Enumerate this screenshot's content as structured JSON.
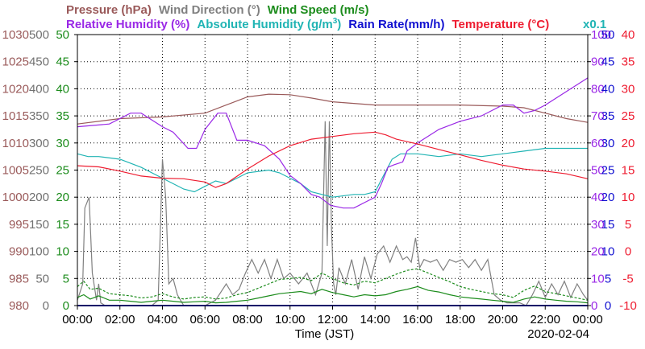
{
  "chart_data": {
    "type": "line",
    "date": "2020-02-04",
    "xlabel": "Time (JST)",
    "x_ticks": [
      "00:00",
      "02:00",
      "04:00",
      "06:00",
      "08:00",
      "10:00",
      "12:00",
      "14:00",
      "16:00",
      "18:00",
      "20:00",
      "22:00",
      "00:00"
    ],
    "x_range_hours": [
      0,
      24
    ],
    "grid": true,
    "legend": [
      {
        "key": "pressure",
        "label": "Pressure (hPa)",
        "color": "#9a5a5a",
        "row": 1
      },
      {
        "key": "wind_dir",
        "label": "Wind Direction (°)",
        "color": "#808080",
        "row": 1
      },
      {
        "key": "wind_speed",
        "label": "Wind Speed (m/s)",
        "color": "#1c8c1c",
        "row": 1
      },
      {
        "key": "rel_humidity",
        "label": "Relative Humidity (%)",
        "color": "#9a28e6",
        "row": 2
      },
      {
        "key": "abs_humidity",
        "label": "Absolute Humidity (g/m",
        "sup": "3",
        "suffix": ")",
        "color": "#20b4b4",
        "row": 2
      },
      {
        "key": "rain_rate",
        "label": "Rain Rate(mm/h)",
        "color": "#1010d0",
        "row": 2
      },
      {
        "key": "temperature",
        "label": "Temperature (°C)",
        "color": "#ee1c30",
        "row": 2
      }
    ],
    "abs_humidity_scale_note": "x0.1",
    "axes": {
      "pressure": {
        "side": "left",
        "color": "#9a5a5a",
        "range": [
          980,
          1030
        ],
        "ticks": [
          "1030",
          "1025",
          "1020",
          "1015",
          "1010",
          "1005",
          "1000",
          "995",
          "990",
          "985",
          "980"
        ]
      },
      "wind_dir": {
        "side": "left",
        "color": "#707070",
        "range": [
          0,
          500
        ],
        "ticks": [
          "500",
          "450",
          "400",
          "350",
          "300",
          "250",
          "200",
          "150",
          "100",
          "50",
          "0"
        ]
      },
      "wind_speed": {
        "side": "left",
        "color": "#1c8c1c",
        "range": [
          0,
          50
        ],
        "ticks": [
          "50",
          "45",
          "40",
          "35",
          "30",
          "25",
          "20",
          "15",
          "10",
          "5",
          "0"
        ]
      },
      "rel_humidity": {
        "side": "right",
        "color": "#9a28e6",
        "range": [
          0,
          100
        ],
        "ticks": [
          "100",
          "90",
          "80",
          "70",
          "60",
          "50",
          "40",
          "30",
          "20",
          "10",
          "0"
        ]
      },
      "rain_rate": {
        "side": "right",
        "color": "#1010d0",
        "range": [
          0,
          50
        ],
        "ticks": [
          "50",
          "45",
          "40",
          "35",
          "30",
          "25",
          "20",
          "15",
          "10",
          "5",
          "0"
        ]
      },
      "temperature": {
        "side": "right",
        "color": "#ee1c30",
        "range": [
          -10,
          40
        ],
        "ticks": [
          "40",
          "35",
          "30",
          "25",
          "20",
          "15",
          "10",
          "5",
          "0",
          "-5",
          "-10"
        ]
      }
    },
    "series": [
      {
        "name": "Pressure (hPa)",
        "axis": "pressure",
        "color": "#9a5a5a",
        "x": [
          0,
          2,
          4,
          6,
          7,
          8,
          9,
          10,
          11,
          12,
          14,
          16,
          18,
          20,
          21,
          22,
          23,
          24
        ],
        "y": [
          1013.5,
          1014.5,
          1014.8,
          1015.5,
          1017,
          1018.5,
          1019,
          1018.9,
          1018.3,
          1017.6,
          1017,
          1017,
          1017,
          1016.8,
          1016.5,
          1015.5,
          1014.5,
          1013.8
        ]
      },
      {
        "name": "Relative Humidity (%)",
        "axis": "rel_humidity",
        "color": "#9a28e6",
        "x": [
          0,
          1.5,
          2.5,
          3,
          4,
          4.5,
          5.2,
          5.6,
          6.0,
          6.6,
          7.0,
          7.5,
          8,
          8.8,
          9.5,
          10,
          10.5,
          11,
          11.4,
          11.9,
          12.5,
          13,
          13.5,
          14.0,
          14.3,
          14.6,
          14.9,
          15.3,
          15.5,
          16,
          17,
          18,
          19,
          20,
          20.5,
          21,
          21.5,
          22,
          23,
          24
        ],
        "y": [
          66,
          67,
          71,
          71,
          66,
          64,
          58,
          58,
          65,
          71,
          71,
          61,
          61,
          59,
          54,
          48,
          45,
          41,
          40,
          37,
          36,
          36,
          38,
          40,
          45,
          51,
          52,
          53,
          57,
          60,
          65,
          68,
          70,
          74,
          74,
          71,
          72,
          74,
          79,
          84
        ]
      },
      {
        "name": "Absolute Humidity (g/m3)",
        "axis": "rel_humidity",
        "color": "#20b4b4",
        "x": [
          0,
          0.5,
          1,
          2,
          3,
          4,
          5,
          5.5,
          6,
          6.5,
          7,
          7.5,
          8,
          9,
          9.5,
          10,
          10.5,
          11,
          11.5,
          12,
          13,
          13.5,
          14,
          14.4,
          14.8,
          15.2,
          16,
          17,
          18,
          19,
          20,
          21,
          22,
          23,
          24
        ],
        "y": [
          56,
          55,
          55,
          54,
          51,
          47,
          43,
          42,
          44,
          46,
          45,
          47,
          49,
          50,
          49,
          47,
          45,
          42,
          41,
          40,
          41,
          41,
          42,
          48,
          54,
          56,
          56,
          55,
          56,
          55,
          56,
          57,
          58,
          58,
          58
        ]
      },
      {
        "name": "Temperature (°C)",
        "axis": "temperature",
        "color": "#ee1c30",
        "x": [
          0,
          1,
          2,
          3,
          4,
          5,
          6,
          6.5,
          7,
          8,
          9,
          10,
          11,
          12,
          13,
          14,
          14.5,
          15,
          16,
          17,
          18,
          19,
          20,
          21,
          22,
          23,
          24
        ],
        "y": [
          15.8,
          15.6,
          14.8,
          13.9,
          13.5,
          13.4,
          12.8,
          11.8,
          12.5,
          15.2,
          17.6,
          19.5,
          20.7,
          21.2,
          21.7,
          22.0,
          21.5,
          20.7,
          19.8,
          18.8,
          17.8,
          16.8,
          15.9,
          15.2,
          14.8,
          14.3,
          13.4
        ]
      },
      {
        "name": "Wind Direction (°)",
        "axis": "wind_dir",
        "color": "#808080",
        "x": [
          0,
          0.25,
          0.35,
          0.55,
          0.7,
          0.9,
          1.0,
          1.1,
          1.3,
          1.5,
          2,
          2.5,
          3,
          3.5,
          3.8,
          4.0,
          4.15,
          4.3,
          4.5,
          4.7,
          4.85,
          5.0,
          5.2,
          5.5,
          6,
          6.5,
          7,
          7.3,
          7.6,
          7.9,
          8.2,
          8.5,
          8.8,
          9.1,
          9.4,
          9.7,
          10,
          10.4,
          10.8,
          11.2,
          11.5,
          11.65,
          11.75,
          11.85,
          11.95,
          12.05,
          12.15,
          12.3,
          12.6,
          12.9,
          13.2,
          13.5,
          13.8,
          14.1,
          14.4,
          14.7,
          15.0,
          15.3,
          15.5,
          15.7,
          15.9,
          16.1,
          16.3,
          16.6,
          16.9,
          17.2,
          17.5,
          17.8,
          18.1,
          18.4,
          18.7,
          19.0,
          19.3,
          19.6,
          19.9,
          20.2,
          20.5,
          20.8,
          21.1,
          21.4,
          21.7,
          22.0,
          22.3,
          22.6,
          22.9,
          23.2,
          23.5,
          23.8,
          24
        ],
        "y": [
          10,
          40,
          180,
          200,
          60,
          10,
          40,
          5,
          0,
          0,
          0,
          0,
          0,
          0,
          10,
          270,
          200,
          40,
          50,
          20,
          10,
          0,
          0,
          0,
          0,
          10,
          40,
          20,
          30,
          60,
          85,
          60,
          85,
          50,
          85,
          50,
          60,
          40,
          60,
          20,
          60,
          340,
          110,
          340,
          140,
          40,
          20,
          70,
          40,
          85,
          30,
          90,
          50,
          95,
          110,
          80,
          110,
          85,
          90,
          80,
          125,
          70,
          85,
          80,
          85,
          65,
          85,
          80,
          85,
          70,
          85,
          65,
          85,
          20,
          10,
          5,
          5,
          5,
          0,
          20,
          45,
          15,
          40,
          20,
          45,
          15,
          40,
          20,
          10
        ]
      },
      {
        "name": "Wind Speed (m/s)",
        "axis": "wind_speed",
        "color": "#1c8c1c",
        "x": [
          0,
          0.3,
          0.6,
          1.0,
          1.5,
          2,
          2.5,
          3,
          3.5,
          4,
          4.5,
          5,
          5.5,
          6,
          6.5,
          7,
          7.5,
          8,
          8.5,
          9,
          9.5,
          10,
          10.5,
          11,
          11.5,
          12,
          12.5,
          13,
          13.5,
          14,
          14.5,
          15,
          15.5,
          16,
          16.5,
          17,
          17.5,
          18,
          18.5,
          19,
          19.5,
          20,
          20.5,
          21,
          21.5,
          22,
          22.5,
          23,
          23.5,
          24
        ],
        "y": [
          1.5,
          2.0,
          1.2,
          1.8,
          1.0,
          1.0,
          0.8,
          0.6,
          0.8,
          1.0,
          0.8,
          0.6,
          0.7,
          0.8,
          0.5,
          0.6,
          0.8,
          1.0,
          1.4,
          1.8,
          2.2,
          2.4,
          2.6,
          2.2,
          3.0,
          2.4,
          2.0,
          1.6,
          2.0,
          1.8,
          2.0,
          2.6,
          3.0,
          3.5,
          2.8,
          2.5,
          2.0,
          1.6,
          1.4,
          1.2,
          1.0,
          0.8,
          0.6,
          1.2,
          1.6,
          1.2,
          1.0,
          0.8,
          0.7,
          0.5
        ]
      },
      {
        "name": "Wind Speed gust (m/s)",
        "axis": "wind_speed",
        "color": "#1c8c1c",
        "dashed": true,
        "x": [
          0,
          0.3,
          0.6,
          1.0,
          1.5,
          2,
          2.5,
          3,
          3.5,
          4,
          4.5,
          5,
          5.5,
          6,
          6.5,
          7,
          7.5,
          8,
          8.5,
          9,
          9.5,
          10,
          10.5,
          11,
          11.5,
          12,
          12.5,
          13,
          13.5,
          14,
          14.5,
          15,
          15.5,
          16,
          16.5,
          17,
          17.5,
          18,
          18.5,
          19,
          19.5,
          20,
          20.5,
          21,
          21.5,
          22,
          22.5,
          23,
          23.5,
          24
        ],
        "y": [
          3.5,
          4.5,
          3.0,
          3.2,
          2.2,
          2.0,
          1.8,
          1.4,
          1.6,
          2.2,
          1.6,
          1.2,
          1.5,
          1.6,
          1.2,
          1.4,
          2.0,
          2.4,
          3.2,
          4.0,
          4.8,
          5.0,
          5.2,
          4.6,
          6.0,
          5.0,
          4.2,
          3.8,
          4.5,
          4.2,
          5.0,
          5.8,
          6.5,
          6.8,
          6.0,
          5.2,
          4.4,
          3.5,
          3.0,
          2.6,
          2.2,
          2.0,
          1.5,
          2.8,
          3.6,
          2.6,
          2.2,
          1.8,
          1.4,
          1.0
        ]
      },
      {
        "name": "Rain Rate(mm/h)",
        "axis": "rain_rate",
        "color": "#1010d0",
        "x": [
          0,
          24
        ],
        "y": [
          0,
          0
        ]
      }
    ]
  }
}
